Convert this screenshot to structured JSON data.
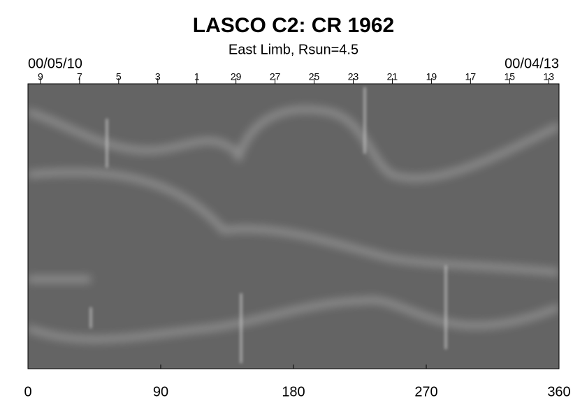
{
  "chart_data": {
    "type": "image-map",
    "title": "LASCO C2: CR 1962",
    "subtitle": "East Limb, Rsun=4.5",
    "start_date": "00/05/10",
    "end_date": "00/04/13",
    "xlim": [
      0,
      360
    ],
    "xticks": [
      0,
      90,
      180,
      270,
      360
    ],
    "top_ticks": [
      {
        "value": 8.5,
        "label": "9"
      },
      {
        "value": 35,
        "label": "7"
      },
      {
        "value": 61.5,
        "label": "5"
      },
      {
        "value": 88,
        "label": "3"
      },
      {
        "value": 114.5,
        "label": "1"
      },
      {
        "value": 141,
        "label": "29"
      },
      {
        "value": 167.5,
        "label": "27"
      },
      {
        "value": 194,
        "label": "25"
      },
      {
        "value": 220.5,
        "label": "23"
      },
      {
        "value": 247,
        "label": "21"
      },
      {
        "value": 273.5,
        "label": "19"
      },
      {
        "value": 300,
        "label": "17"
      },
      {
        "value": 326.5,
        "label": "15"
      },
      {
        "value": 353,
        "label": "13"
      }
    ]
  }
}
